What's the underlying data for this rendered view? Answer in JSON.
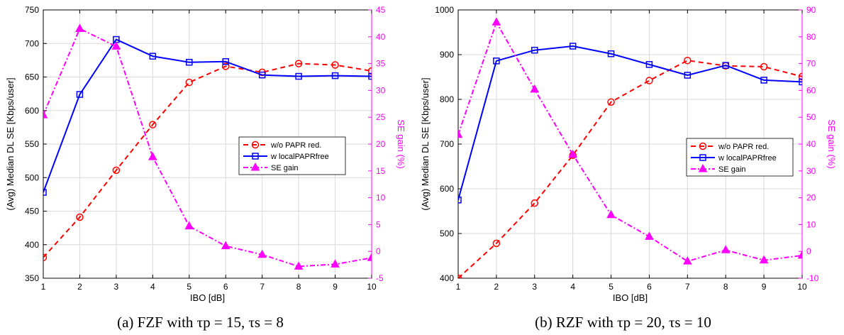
{
  "colors": {
    "wo": "#ff0000",
    "w": "#0000ff",
    "gain": "#ff00ff",
    "axis": "#000000",
    "grid": "#d9d9d9"
  },
  "chart_data": [
    {
      "type": "line",
      "caption": "(a) FZF with τp = 15, τs = 8",
      "xlabel": "IBO [dB]",
      "ylabel": "(Avg) Median DL SE [Kbps/user]",
      "y2label": "SE gain (%)",
      "xlim": [
        1,
        10
      ],
      "ylim": [
        350,
        750
      ],
      "y2lim": [
        -5,
        45
      ],
      "xticks": [
        "1",
        "2",
        "3",
        "4",
        "5",
        "6",
        "7",
        "8",
        "9",
        "10"
      ],
      "yticks": [
        "350",
        "400",
        "450",
        "500",
        "550",
        "600",
        "650",
        "700",
        "750"
      ],
      "y2ticks": [
        "-5",
        "0",
        "5",
        "10",
        "15",
        "20",
        "25",
        "30",
        "35",
        "40",
        "45"
      ],
      "grid": true,
      "legend_position": "right",
      "x": [
        1,
        2,
        3,
        4,
        5,
        6,
        7,
        8,
        9,
        10
      ],
      "series": [
        {
          "name": "w/o PAPR red.",
          "axis": "left",
          "values": [
            381,
            441,
            511,
            579,
            642,
            666,
            657,
            670,
            668,
            659
          ]
        },
        {
          "name": "w localPAPRfree",
          "axis": "left",
          "values": [
            478,
            624,
            706,
            681,
            672,
            673,
            653,
            651,
            652,
            651
          ]
        },
        {
          "name": "SE gain",
          "axis": "right",
          "values": [
            25.4,
            41.5,
            38.2,
            17.6,
            4.7,
            1.0,
            -0.6,
            -2.8,
            -2.4,
            -1.2
          ]
        }
      ]
    },
    {
      "type": "line",
      "caption": "(b) RZF with τp = 20, τs = 10",
      "xlabel": "IBO [dB]",
      "ylabel": "(Avg) Median DL SE [Kbps/user]",
      "y2label": "SE gain (%)",
      "xlim": [
        1,
        10
      ],
      "ylim": [
        400,
        1000
      ],
      "y2lim": [
        -10,
        90
      ],
      "xticks": [
        "1",
        "2",
        "3",
        "4",
        "5",
        "6",
        "7",
        "8",
        "9",
        "10"
      ],
      "yticks": [
        "400",
        "500",
        "600",
        "700",
        "800",
        "900",
        "1000"
      ],
      "y2ticks": [
        "-10",
        "0",
        "10",
        "20",
        "30",
        "40",
        "50",
        "60",
        "70",
        "80",
        "90"
      ],
      "grid": true,
      "legend_position": "right",
      "x": [
        1,
        2,
        3,
        4,
        5,
        6,
        7,
        8,
        9,
        10
      ],
      "series": [
        {
          "name": "w/o PAPR red.",
          "axis": "left",
          "values": [
            400,
            478,
            568,
            675,
            794,
            842,
            887,
            875,
            873,
            851
          ]
        },
        {
          "name": "w localPAPRfree",
          "axis": "left",
          "values": [
            575,
            886,
            910,
            919,
            902,
            878,
            854,
            876,
            843,
            839
          ]
        },
        {
          "name": "SE gain",
          "axis": "right",
          "values": [
            43.5,
            85.4,
            60.4,
            36.1,
            13.6,
            5.5,
            -3.7,
            0.5,
            -3.3,
            -1.5
          ]
        }
      ]
    }
  ]
}
